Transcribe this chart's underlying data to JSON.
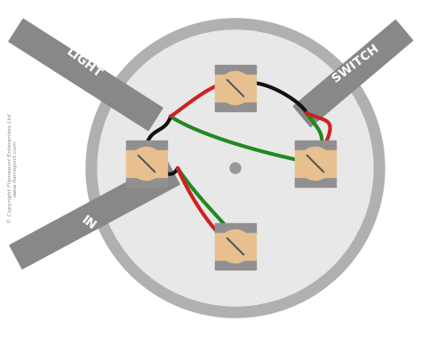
{
  "bg_color": "#ffffff",
  "circle_outer_color": "#b0b0b0",
  "circle_inner_color": "#e8e8e8",
  "cable_color": "#888888",
  "wire_red": "#cc2222",
  "wire_green": "#228822",
  "wire_black": "#111111",
  "connector_tan": "#e8c090",
  "connector_gray": "#909090",
  "center_dot_color": "#999999",
  "label_light": "LIGHT",
  "label_switch": "SWITCH",
  "label_in": "IN",
  "copyright_line1": "© Copyright Flameport Enterprises Ltd",
  "copyright_line2": "www.flameport.com"
}
